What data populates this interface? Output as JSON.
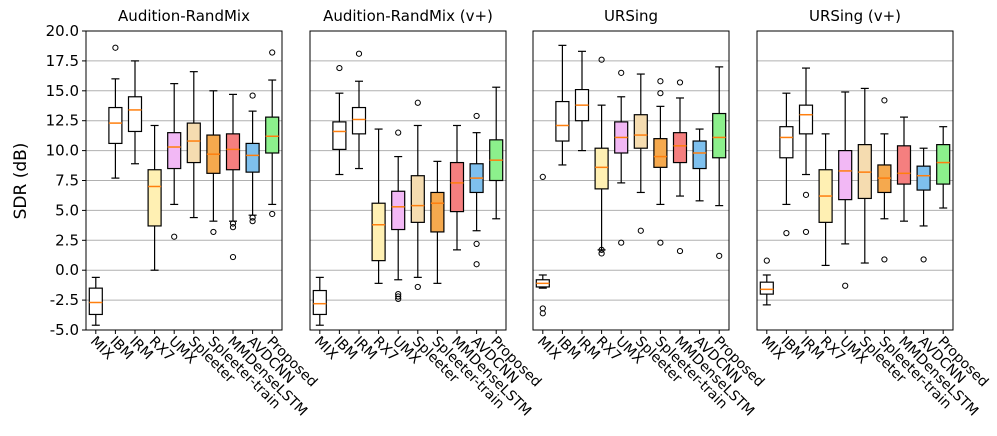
{
  "chart_data": {
    "type": "box",
    "ylabel": "SDR (dB)",
    "ylim": [
      -5.0,
      20.0
    ],
    "yticks": [
      "-5.0",
      "-2.5",
      "0.0",
      "2.5",
      "5.0",
      "7.5",
      "10.0",
      "12.5",
      "15.0",
      "17.5",
      "20.0"
    ],
    "grid": "horizontal",
    "categories": [
      "MIX",
      "IBM",
      "IRM",
      "RX7",
      "UMX",
      "Spleeter",
      "Spleeter-train",
      "MMDenseLSTM",
      "AVDCNN",
      "Proposed"
    ],
    "colors": [
      "#ffffff",
      "#ffffff",
      "#ffffff",
      "#fff0b3",
      "#f2b8f5",
      "#f5dcb0",
      "#f5a94e",
      "#f57f7f",
      "#7ec0ee",
      "#8cf08c"
    ],
    "median_color": "#ff7f0e",
    "panels": [
      {
        "title": "Audition-RandMix",
        "boxes": [
          {
            "whislo": -4.6,
            "q1": -3.7,
            "med": -2.7,
            "q3": -1.5,
            "whishi": -0.6,
            "fliers": []
          },
          {
            "whislo": 7.7,
            "q1": 10.6,
            "med": 12.3,
            "q3": 13.6,
            "whishi": 16.0,
            "fliers": [
              18.6
            ]
          },
          {
            "whislo": 8.9,
            "q1": 11.6,
            "med": 13.4,
            "q3": 14.5,
            "whishi": 17.5,
            "fliers": []
          },
          {
            "whislo": 0.0,
            "q1": 3.7,
            "med": 7.0,
            "q3": 8.4,
            "whishi": 12.1,
            "fliers": []
          },
          {
            "whislo": 5.5,
            "q1": 8.5,
            "med": 10.3,
            "q3": 11.5,
            "whishi": 15.6,
            "fliers": [
              2.8
            ]
          },
          {
            "whislo": 4.4,
            "q1": 9.0,
            "med": 10.8,
            "q3": 12.3,
            "whishi": 16.6,
            "fliers": []
          },
          {
            "whislo": 4.1,
            "q1": 8.1,
            "med": 9.7,
            "q3": 11.3,
            "whishi": 15.0,
            "fliers": [
              3.2
            ]
          },
          {
            "whislo": 4.1,
            "q1": 8.4,
            "med": 10.1,
            "q3": 11.4,
            "whishi": 14.7,
            "fliers": [
              3.9,
              3.6,
              1.1
            ]
          },
          {
            "whislo": 4.6,
            "q1": 8.2,
            "med": 9.6,
            "q3": 10.6,
            "whishi": 13.3,
            "fliers": [
              14.6,
              4.4,
              4.1
            ]
          },
          {
            "whislo": 5.5,
            "q1": 9.8,
            "med": 11.2,
            "q3": 12.8,
            "whishi": 15.9,
            "fliers": [
              18.2,
              4.7
            ]
          }
        ]
      },
      {
        "title": "Audition-RandMix (v+)",
        "boxes": [
          {
            "whislo": -4.6,
            "q1": -3.7,
            "med": -2.8,
            "q3": -1.7,
            "whishi": -0.6,
            "fliers": []
          },
          {
            "whislo": 8.0,
            "q1": 10.1,
            "med": 11.6,
            "q3": 12.4,
            "whishi": 14.8,
            "fliers": [
              16.9
            ]
          },
          {
            "whislo": 8.5,
            "q1": 11.4,
            "med": 12.6,
            "q3": 13.6,
            "whishi": 15.8,
            "fliers": [
              18.1
            ]
          },
          {
            "whislo": -1.1,
            "q1": 0.8,
            "med": 3.8,
            "q3": 5.6,
            "whishi": 11.8,
            "fliers": []
          },
          {
            "whislo": -0.8,
            "q1": 3.4,
            "med": 5.3,
            "q3": 6.6,
            "whishi": 9.5,
            "fliers": [
              11.5,
              -2.0,
              -2.2,
              -2.4
            ]
          },
          {
            "whislo": -0.6,
            "q1": 4.0,
            "med": 5.4,
            "q3": 7.9,
            "whishi": 12.1,
            "fliers": [
              14.0,
              -1.4
            ]
          },
          {
            "whislo": -1.1,
            "q1": 3.2,
            "med": 5.6,
            "q3": 6.5,
            "whishi": 9.1,
            "fliers": []
          },
          {
            "whislo": 1.7,
            "q1": 4.9,
            "med": 7.3,
            "q3": 9.0,
            "whishi": 12.1,
            "fliers": []
          },
          {
            "whislo": 3.3,
            "q1": 6.5,
            "med": 7.7,
            "q3": 8.9,
            "whishi": 11.5,
            "fliers": [
              12.9,
              2.2,
              0.5
            ]
          },
          {
            "whislo": 4.3,
            "q1": 7.5,
            "med": 9.2,
            "q3": 10.9,
            "whishi": 15.3,
            "fliers": []
          }
        ]
      },
      {
        "title": "URSing",
        "boxes": [
          {
            "whislo": -1.5,
            "q1": -1.4,
            "med": -1.1,
            "q3": -0.8,
            "whishi": -0.4,
            "fliers": [
              7.8,
              -3.2,
              -3.6
            ]
          },
          {
            "whislo": 8.8,
            "q1": 10.8,
            "med": 12.1,
            "q3": 14.1,
            "whishi": 18.8,
            "fliers": []
          },
          {
            "whislo": 10.0,
            "q1": 12.5,
            "med": 13.8,
            "q3": 15.1,
            "whishi": 18.3,
            "fliers": []
          },
          {
            "whislo": 1.7,
            "q1": 6.8,
            "med": 8.6,
            "q3": 10.2,
            "whishi": 13.8,
            "fliers": [
              17.6,
              1.7,
              1.4
            ]
          },
          {
            "whislo": 7.3,
            "q1": 9.8,
            "med": 11.1,
            "q3": 12.4,
            "whishi": 14.5,
            "fliers": [
              16.5,
              2.3
            ]
          },
          {
            "whislo": 6.5,
            "q1": 10.2,
            "med": 11.3,
            "q3": 13.0,
            "whishi": 16.4,
            "fliers": [
              3.3
            ]
          },
          {
            "whislo": 5.5,
            "q1": 8.6,
            "med": 9.5,
            "q3": 11.0,
            "whishi": 13.7,
            "fliers": [
              15.8,
              14.8,
              2.3
            ]
          },
          {
            "whislo": 6.2,
            "q1": 9.0,
            "med": 10.4,
            "q3": 11.5,
            "whishi": 14.4,
            "fliers": [
              15.7,
              1.6
            ]
          },
          {
            "whislo": 5.8,
            "q1": 8.5,
            "med": 9.8,
            "q3": 10.8,
            "whishi": 11.8,
            "fliers": []
          },
          {
            "whislo": 5.4,
            "q1": 9.4,
            "med": 11.1,
            "q3": 13.1,
            "whishi": 17.0,
            "fliers": [
              1.2
            ]
          }
        ]
      },
      {
        "title": "URSing (v+)",
        "boxes": [
          {
            "whislo": -2.9,
            "q1": -2.0,
            "med": -1.6,
            "q3": -1.0,
            "whishi": -0.4,
            "fliers": [
              0.8
            ]
          },
          {
            "whislo": 5.5,
            "q1": 9.4,
            "med": 11.1,
            "q3": 12.0,
            "whishi": 14.8,
            "fliers": [
              3.1
            ]
          },
          {
            "whislo": 8.0,
            "q1": 11.4,
            "med": 13.0,
            "q3": 13.8,
            "whishi": 16.9,
            "fliers": [
              6.3,
              3.2
            ]
          },
          {
            "whislo": 0.4,
            "q1": 4.0,
            "med": 6.2,
            "q3": 8.4,
            "whishi": 11.4,
            "fliers": []
          },
          {
            "whislo": 2.2,
            "q1": 5.9,
            "med": 8.3,
            "q3": 10.0,
            "whishi": 14.9,
            "fliers": [
              -1.3
            ]
          },
          {
            "whislo": 0.6,
            "q1": 6.0,
            "med": 8.2,
            "q3": 10.5,
            "whishi": 15.2,
            "fliers": []
          },
          {
            "whislo": 4.3,
            "q1": 6.5,
            "med": 7.7,
            "q3": 8.8,
            "whishi": 11.4,
            "fliers": [
              14.2,
              0.9
            ]
          },
          {
            "whislo": 4.1,
            "q1": 7.2,
            "med": 8.1,
            "q3": 10.4,
            "whishi": 12.8,
            "fliers": []
          },
          {
            "whislo": 3.7,
            "q1": 6.7,
            "med": 7.9,
            "q3": 8.7,
            "whishi": 10.2,
            "fliers": [
              0.9
            ]
          },
          {
            "whislo": 5.2,
            "q1": 7.2,
            "med": 9.0,
            "q3": 10.5,
            "whishi": 12.0,
            "fliers": []
          }
        ]
      }
    ]
  }
}
